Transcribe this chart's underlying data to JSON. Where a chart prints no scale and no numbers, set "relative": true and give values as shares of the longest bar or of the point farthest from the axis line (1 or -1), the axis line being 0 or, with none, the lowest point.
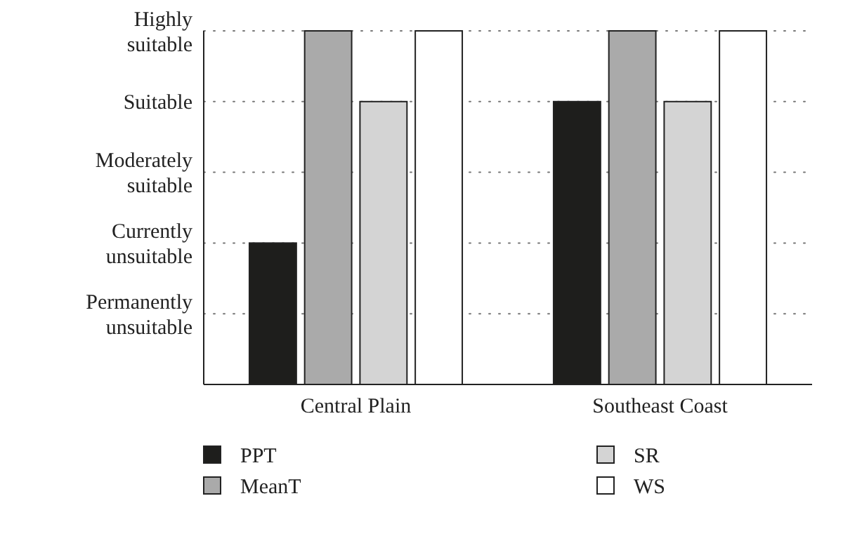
{
  "chart_data": {
    "type": "bar",
    "categories": [
      "Central Plain",
      "Southeast Coast"
    ],
    "relative": true,
    "series": [
      {
        "name": "PPT",
        "color": "#1e1e1c",
        "values": [
          0.4,
          0.8
        ]
      },
      {
        "name": "MeanT",
        "color": "#aaaaaa",
        "values": [
          1,
          1
        ]
      },
      {
        "name": "SR",
        "color": "#d4d4d4",
        "values": [
          0.8,
          0.8
        ]
      },
      {
        "name": "WS",
        "color": "#ffffff",
        "values": [
          1,
          1
        ]
      }
    ],
    "annotations": [
      "Permanently unsuitable",
      "Currently unsuitable",
      "Moderately suitable",
      "Suitable",
      "Highly suitable"
    ],
    "grid": "y",
    "line_style": "dotted",
    "legend": "bottom"
  }
}
